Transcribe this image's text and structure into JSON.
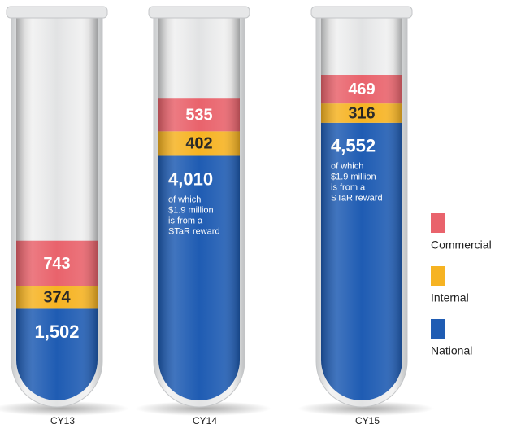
{
  "chart_data": {
    "type": "tube-stack",
    "categories": [
      "CY13",
      "CY14",
      "CY15"
    ],
    "series": [
      {
        "name": "National",
        "color": "#1f5cb3",
        "values": [
          1502,
          4010,
          4552
        ],
        "value_labels": [
          "1,502",
          "4,010",
          "4,552"
        ]
      },
      {
        "name": "Internal",
        "color": "#f6b322",
        "values": [
          374,
          402,
          316
        ]
      },
      {
        "name": "Commercial",
        "color": "#e9636c",
        "values": [
          743,
          535,
          469
        ]
      }
    ],
    "notes": [
      null,
      [
        "of which",
        "$1.9 million",
        "is from a",
        "STaR reward"
      ],
      [
        "of which",
        "$1.9 million",
        "is from a",
        "STaR reward"
      ]
    ]
  }
}
